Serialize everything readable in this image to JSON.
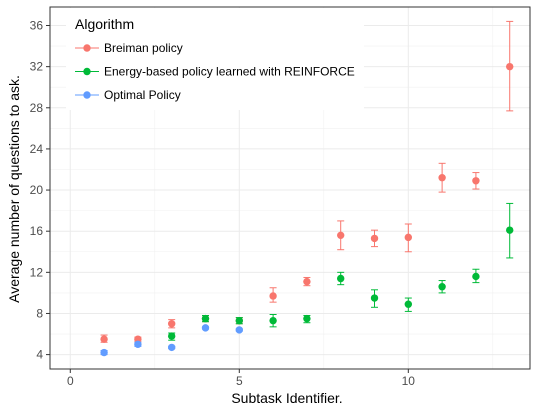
{
  "chart_data": {
    "type": "scatter",
    "title": "",
    "xlabel": "Subtask Identifier.",
    "ylabel": "Average number of questions to ask.",
    "xlim": [
      -0.6,
      13.6
    ],
    "ylim": [
      2.6,
      37.8
    ],
    "xticks": [
      0,
      5,
      10
    ],
    "xtick_labels": [
      "0",
      "5",
      "10"
    ],
    "yticks": [
      4,
      8,
      12,
      16,
      20,
      24,
      28,
      32,
      36
    ],
    "ytick_labels": [
      "4",
      "8",
      "12",
      "16",
      "20",
      "24",
      "28",
      "32",
      "36"
    ],
    "grid": true,
    "legend": {
      "title": "Algorithm",
      "position": "top-left"
    },
    "series": [
      {
        "name": "Breiman policy",
        "color": "#F8766D",
        "points": [
          {
            "x": 1,
            "y": 5.5,
            "lo": 5.2,
            "hi": 5.9
          },
          {
            "x": 2,
            "y": 5.5,
            "lo": 5.3,
            "hi": 5.7
          },
          {
            "x": 3,
            "y": 7.0,
            "lo": 6.6,
            "hi": 7.4
          },
          {
            "x": 4,
            "y": 7.5,
            "lo": 7.2,
            "hi": 7.8
          },
          {
            "x": 5,
            "y": 7.3,
            "lo": 7.0,
            "hi": 7.6
          },
          {
            "x": 6,
            "y": 9.7,
            "lo": 9.1,
            "hi": 10.5
          },
          {
            "x": 7,
            "y": 11.1,
            "lo": 10.7,
            "hi": 11.5
          },
          {
            "x": 8,
            "y": 15.6,
            "lo": 14.2,
            "hi": 17.0
          },
          {
            "x": 9,
            "y": 15.3,
            "lo": 14.5,
            "hi": 16.1
          },
          {
            "x": 10,
            "y": 15.4,
            "lo": 14.0,
            "hi": 16.7
          },
          {
            "x": 11,
            "y": 21.2,
            "lo": 19.8,
            "hi": 22.6
          },
          {
            "x": 12,
            "y": 20.9,
            "lo": 20.1,
            "hi": 21.7
          },
          {
            "x": 13,
            "y": 32.0,
            "lo": 27.7,
            "hi": 36.4
          }
        ]
      },
      {
        "name": "Energy-based policy learned with REINFORCE",
        "color": "#00BA38",
        "points": [
          {
            "x": 3,
            "y": 5.8,
            "lo": 5.4,
            "hi": 6.1
          },
          {
            "x": 4,
            "y": 7.5,
            "lo": 7.2,
            "hi": 7.8
          },
          {
            "x": 5,
            "y": 7.3,
            "lo": 7.0,
            "hi": 7.6
          },
          {
            "x": 6,
            "y": 7.3,
            "lo": 6.7,
            "hi": 7.9
          },
          {
            "x": 7,
            "y": 7.5,
            "lo": 7.1,
            "hi": 7.8
          },
          {
            "x": 8,
            "y": 11.4,
            "lo": 10.8,
            "hi": 12.0
          },
          {
            "x": 9,
            "y": 9.5,
            "lo": 8.6,
            "hi": 10.3
          },
          {
            "x": 10,
            "y": 8.9,
            "lo": 8.2,
            "hi": 9.5
          },
          {
            "x": 11,
            "y": 10.6,
            "lo": 10.0,
            "hi": 11.2
          },
          {
            "x": 12,
            "y": 11.6,
            "lo": 11.0,
            "hi": 12.3
          },
          {
            "x": 13,
            "y": 16.1,
            "lo": 13.4,
            "hi": 18.7
          }
        ]
      },
      {
        "name": "Optimal Policy",
        "color": "#619CFF",
        "points": [
          {
            "x": 1,
            "y": 4.2,
            "lo": 4.0,
            "hi": 4.4
          },
          {
            "x": 2,
            "y": 5.0,
            "lo": 4.8,
            "hi": 5.2
          },
          {
            "x": 3,
            "y": 4.7,
            "lo": 4.6,
            "hi": 4.8
          },
          {
            "x": 4,
            "y": 6.6,
            "lo": 6.5,
            "hi": 6.7
          },
          {
            "x": 5,
            "y": 6.4,
            "lo": 6.3,
            "hi": 6.5
          }
        ]
      }
    ]
  }
}
